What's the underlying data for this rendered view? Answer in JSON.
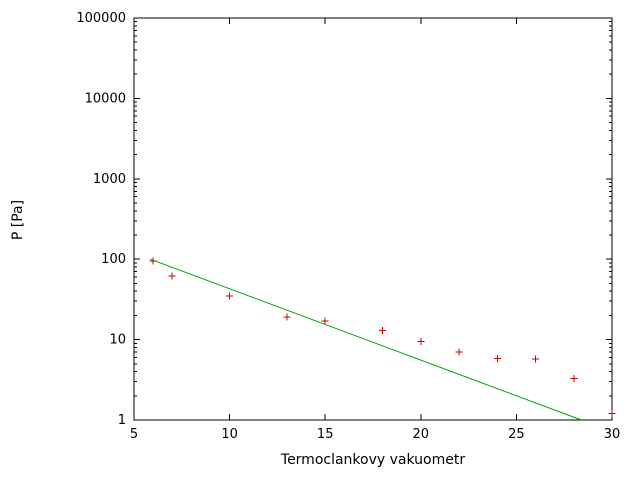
{
  "chart_data": {
    "type": "scatter",
    "title": "",
    "xlabel": "Termoclankovy vakuometr",
    "ylabel": "P [Pa]",
    "x_scale": "linear",
    "y_scale": "log10",
    "xlim": [
      5,
      30
    ],
    "ylim": [
      1,
      100000
    ],
    "x_ticks": [
      5,
      10,
      15,
      20,
      25,
      30
    ],
    "y_ticks": [
      1,
      10,
      100,
      1000,
      10000,
      100000
    ],
    "grid": false,
    "legend": "none",
    "series": [
      {
        "name": "measured-points",
        "type": "scatter",
        "marker": "plus",
        "color": "#cc0000",
        "x": [
          6,
          7,
          10,
          13,
          15,
          18,
          20,
          22,
          24,
          26,
          28,
          30
        ],
        "y": [
          95,
          62,
          35,
          19,
          17,
          13,
          9.5,
          7.0,
          5.8,
          5.7,
          3.3,
          1.2
        ]
      },
      {
        "name": "exponential-fit-line",
        "type": "line",
        "color": "#00a000",
        "x": [
          5.85,
          28.4
        ],
        "y": [
          100,
          1
        ]
      }
    ],
    "axis_color": "#000000",
    "background_color": "#ffffff"
  }
}
